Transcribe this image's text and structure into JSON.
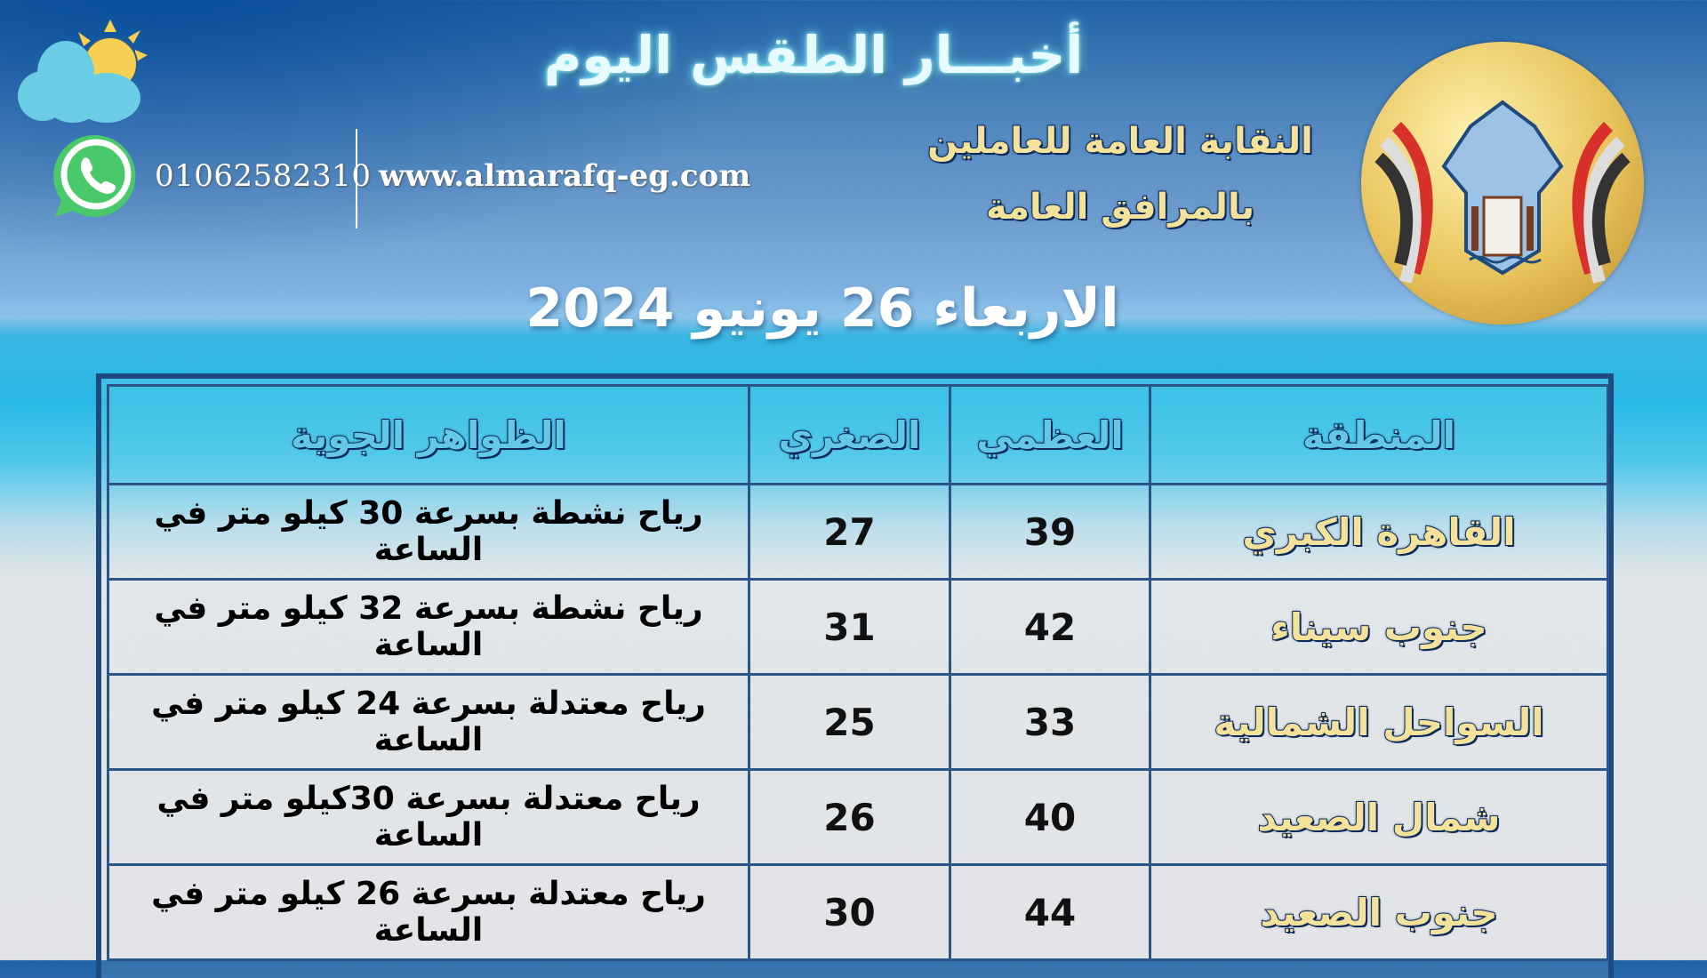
{
  "header": {
    "title": "أخبـــار الطقس اليوم",
    "union_line1": "النقابة العامة للعاملين",
    "union_line2": "بالمرافق العامة",
    "date": "الاربعاء 26 يونيو 2024",
    "phone": "01062582310",
    "website": "www.almarafq-eg.com",
    "logo_text": "النقابة العامة للعاملين بالمرافق العامة"
  },
  "colors": {
    "accent_yellow": "#f4e29a",
    "outline_navy": "#0c2a5a",
    "header_cyan": "#62c8e6",
    "whatsapp_green": "#4ac96b"
  },
  "icons": [
    "weather-sun-cloud-icon",
    "whatsapp-icon"
  ],
  "table": {
    "headers": {
      "region": "المنطقة",
      "max": "العظمي",
      "min": "الصغري",
      "phenomena": "الظواهر الجوية"
    },
    "rows": [
      {
        "region": "القاهرة الكبري",
        "max": "39",
        "min": "27",
        "phenomena": "رياح نشطة بسرعة 30 كيلو متر في الساعة"
      },
      {
        "region": "جنوب سيناء",
        "max": "42",
        "min": "31",
        "phenomena": "رياح نشطة بسرعة 32 كيلو متر في الساعة"
      },
      {
        "region": "السواحل الشمالية",
        "max": "33",
        "min": "25",
        "phenomena": "رياح معتدلة بسرعة 24 كيلو متر في الساعة"
      },
      {
        "region": "شمال الصعيد",
        "max": "40",
        "min": "26",
        "phenomena": "رياح معتدلة بسرعة 30كيلو متر في الساعة"
      },
      {
        "region": "جنوب الصعيد",
        "max": "44",
        "min": "30",
        "phenomena": "رياح معتدلة بسرعة 26 كيلو متر في الساعة"
      }
    ]
  }
}
